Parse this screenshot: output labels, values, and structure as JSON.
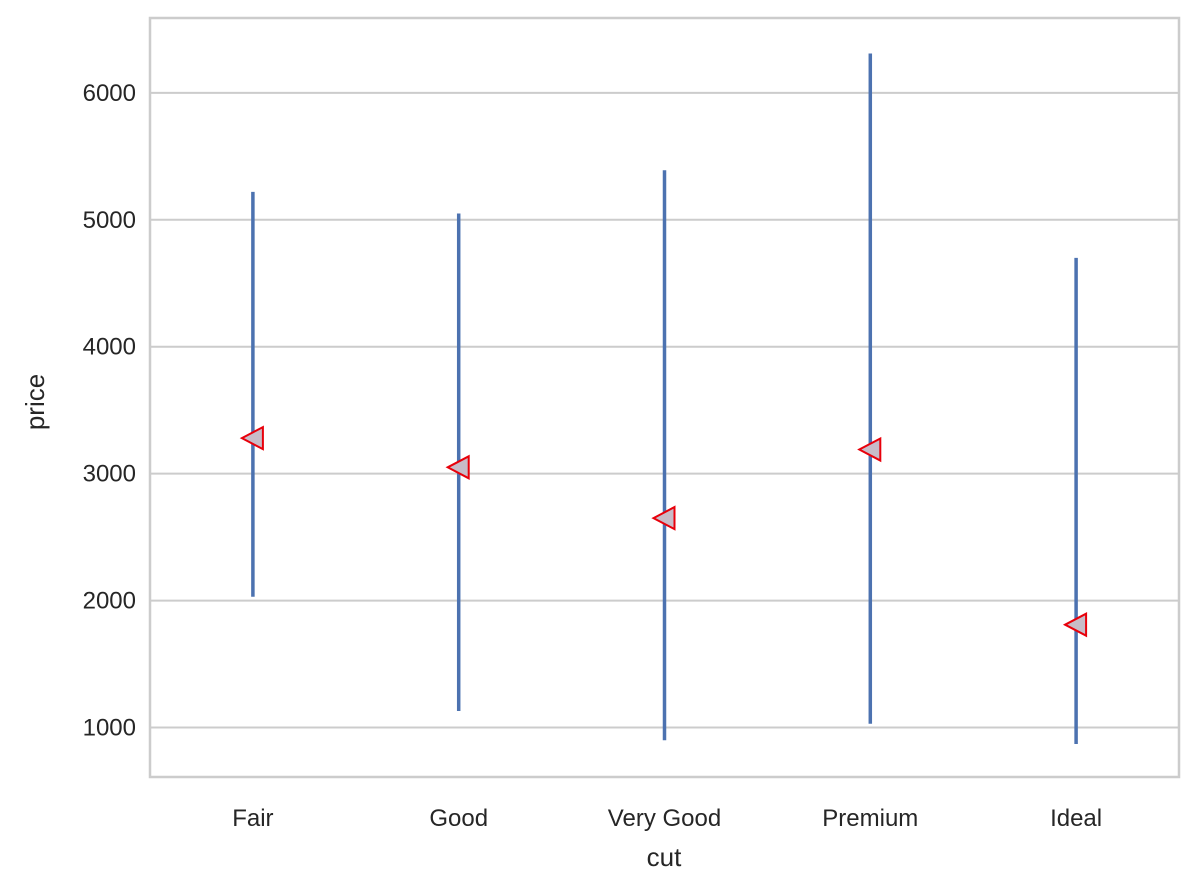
{
  "chart_data": {
    "type": "pointplot",
    "xlabel": "cut",
    "ylabel": "price",
    "categories": [
      "Fair",
      "Good",
      "Very Good",
      "Premium",
      "Ideal"
    ],
    "values": [
      3280,
      3050,
      2650,
      3190,
      1810
    ],
    "error_low": [
      2030,
      1130,
      900,
      1030,
      870
    ],
    "error_high": [
      5220,
      5050,
      5390,
      6310,
      4700
    ],
    "ylim": [
      610,
      6590
    ],
    "yticks": [
      1000,
      2000,
      3000,
      4000,
      5000,
      6000
    ],
    "grid": true,
    "errorbar_color": "#4c72b0",
    "marker": "triangle-left",
    "marker_fill": "#c8bcc8",
    "marker_edge": "#e8000b"
  }
}
